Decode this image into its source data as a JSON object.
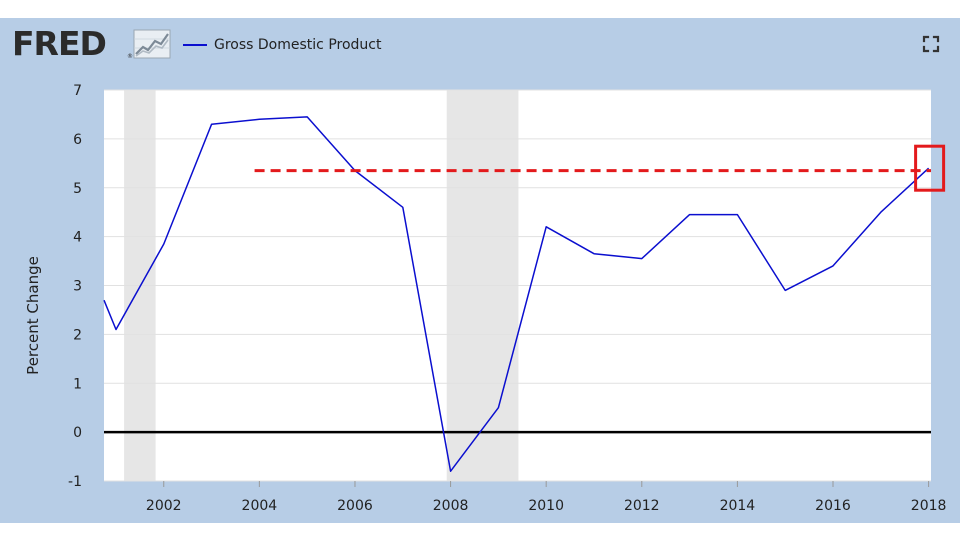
{
  "header": {
    "logo_text": "FRED",
    "logo_reg": "®",
    "logo_icon": "chart-line-icon",
    "fullscreen_icon": "fullscreen-icon"
  },
  "colors": {
    "frame": "#b7cde6",
    "plot_bg": "#ffffff",
    "grid": "#e1e1e1",
    "recession": "#e6e6e6",
    "series": "#0b0fcf",
    "zero_line": "#000000",
    "ref_line": "#e31a1c",
    "highlight_box": "#e31a1c",
    "text": "#222222"
  },
  "chart_data": {
    "type": "line",
    "title": "",
    "xlabel": "",
    "ylabel": "Percent Change",
    "xlim": [
      2000.75,
      2018.05
    ],
    "ylim": [
      -1,
      7
    ],
    "yticks": [
      -1,
      0,
      1,
      2,
      3,
      4,
      5,
      6,
      7
    ],
    "xticks": [
      2002,
      2004,
      2006,
      2008,
      2010,
      2012,
      2014,
      2016,
      2018
    ],
    "grid": true,
    "legend_position": "top-left",
    "series": [
      {
        "name": "Gross Domestic Product",
        "x": [
          2000.75,
          2001,
          2002,
          2003,
          2004,
          2005,
          2006,
          2007,
          2008,
          2009,
          2010,
          2011,
          2012,
          2013,
          2014,
          2015,
          2016,
          2017,
          2018
        ],
        "y": [
          2.7,
          2.1,
          3.85,
          6.3,
          6.4,
          6.45,
          5.35,
          4.6,
          -0.8,
          0.5,
          4.2,
          3.65,
          3.55,
          4.45,
          4.45,
          2.9,
          3.4,
          4.5,
          5.4
        ]
      }
    ],
    "recessions": [
      [
        2001.17,
        2001.83
      ],
      [
        2007.92,
        2009.42
      ]
    ],
    "reference_line": {
      "y": 5.35,
      "x_start": 2003.9,
      "x_end": 2018.05
    },
    "highlight": {
      "x": 2018,
      "y": 5.4
    },
    "zero_line": 0
  }
}
